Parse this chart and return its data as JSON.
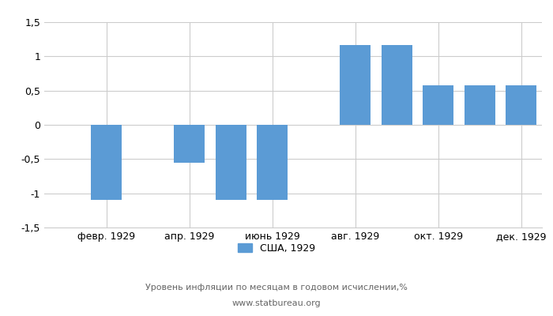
{
  "months": [
    1,
    2,
    3,
    4,
    5,
    6,
    7,
    8,
    9,
    10,
    11,
    12
  ],
  "values": [
    null,
    -1.1,
    null,
    -0.55,
    -1.1,
    -1.1,
    null,
    1.17,
    1.17,
    0.58,
    0.58,
    0.58
  ],
  "bar_color": "#5b9bd5",
  "ylim": [
    -1.5,
    1.5
  ],
  "yticks": [
    -1.5,
    -1.0,
    -0.5,
    0.0,
    0.5,
    1.0,
    1.5
  ],
  "ytick_labels": [
    "-1,5",
    "-1",
    "-0,5",
    "0",
    "0,5",
    "1",
    "1,5"
  ],
  "xtick_positions": [
    2,
    4,
    6,
    8,
    10,
    12
  ],
  "xtick_labels": [
    "февр. 1929",
    "апр. 1929",
    "июнь 1929",
    "авг. 1929",
    "окт. 1929",
    "дек. 1929"
  ],
  "legend_label": "США, 1929",
  "footer_line1": "Уровень инфляции по месяцам в годовом исчислении,%",
  "footer_line2": "www.statbureau.org",
  "background_color": "#ffffff",
  "grid_color": "#cccccc",
  "bar_width": 0.75,
  "figsize": [
    7.0,
    4.0
  ],
  "dpi": 100
}
